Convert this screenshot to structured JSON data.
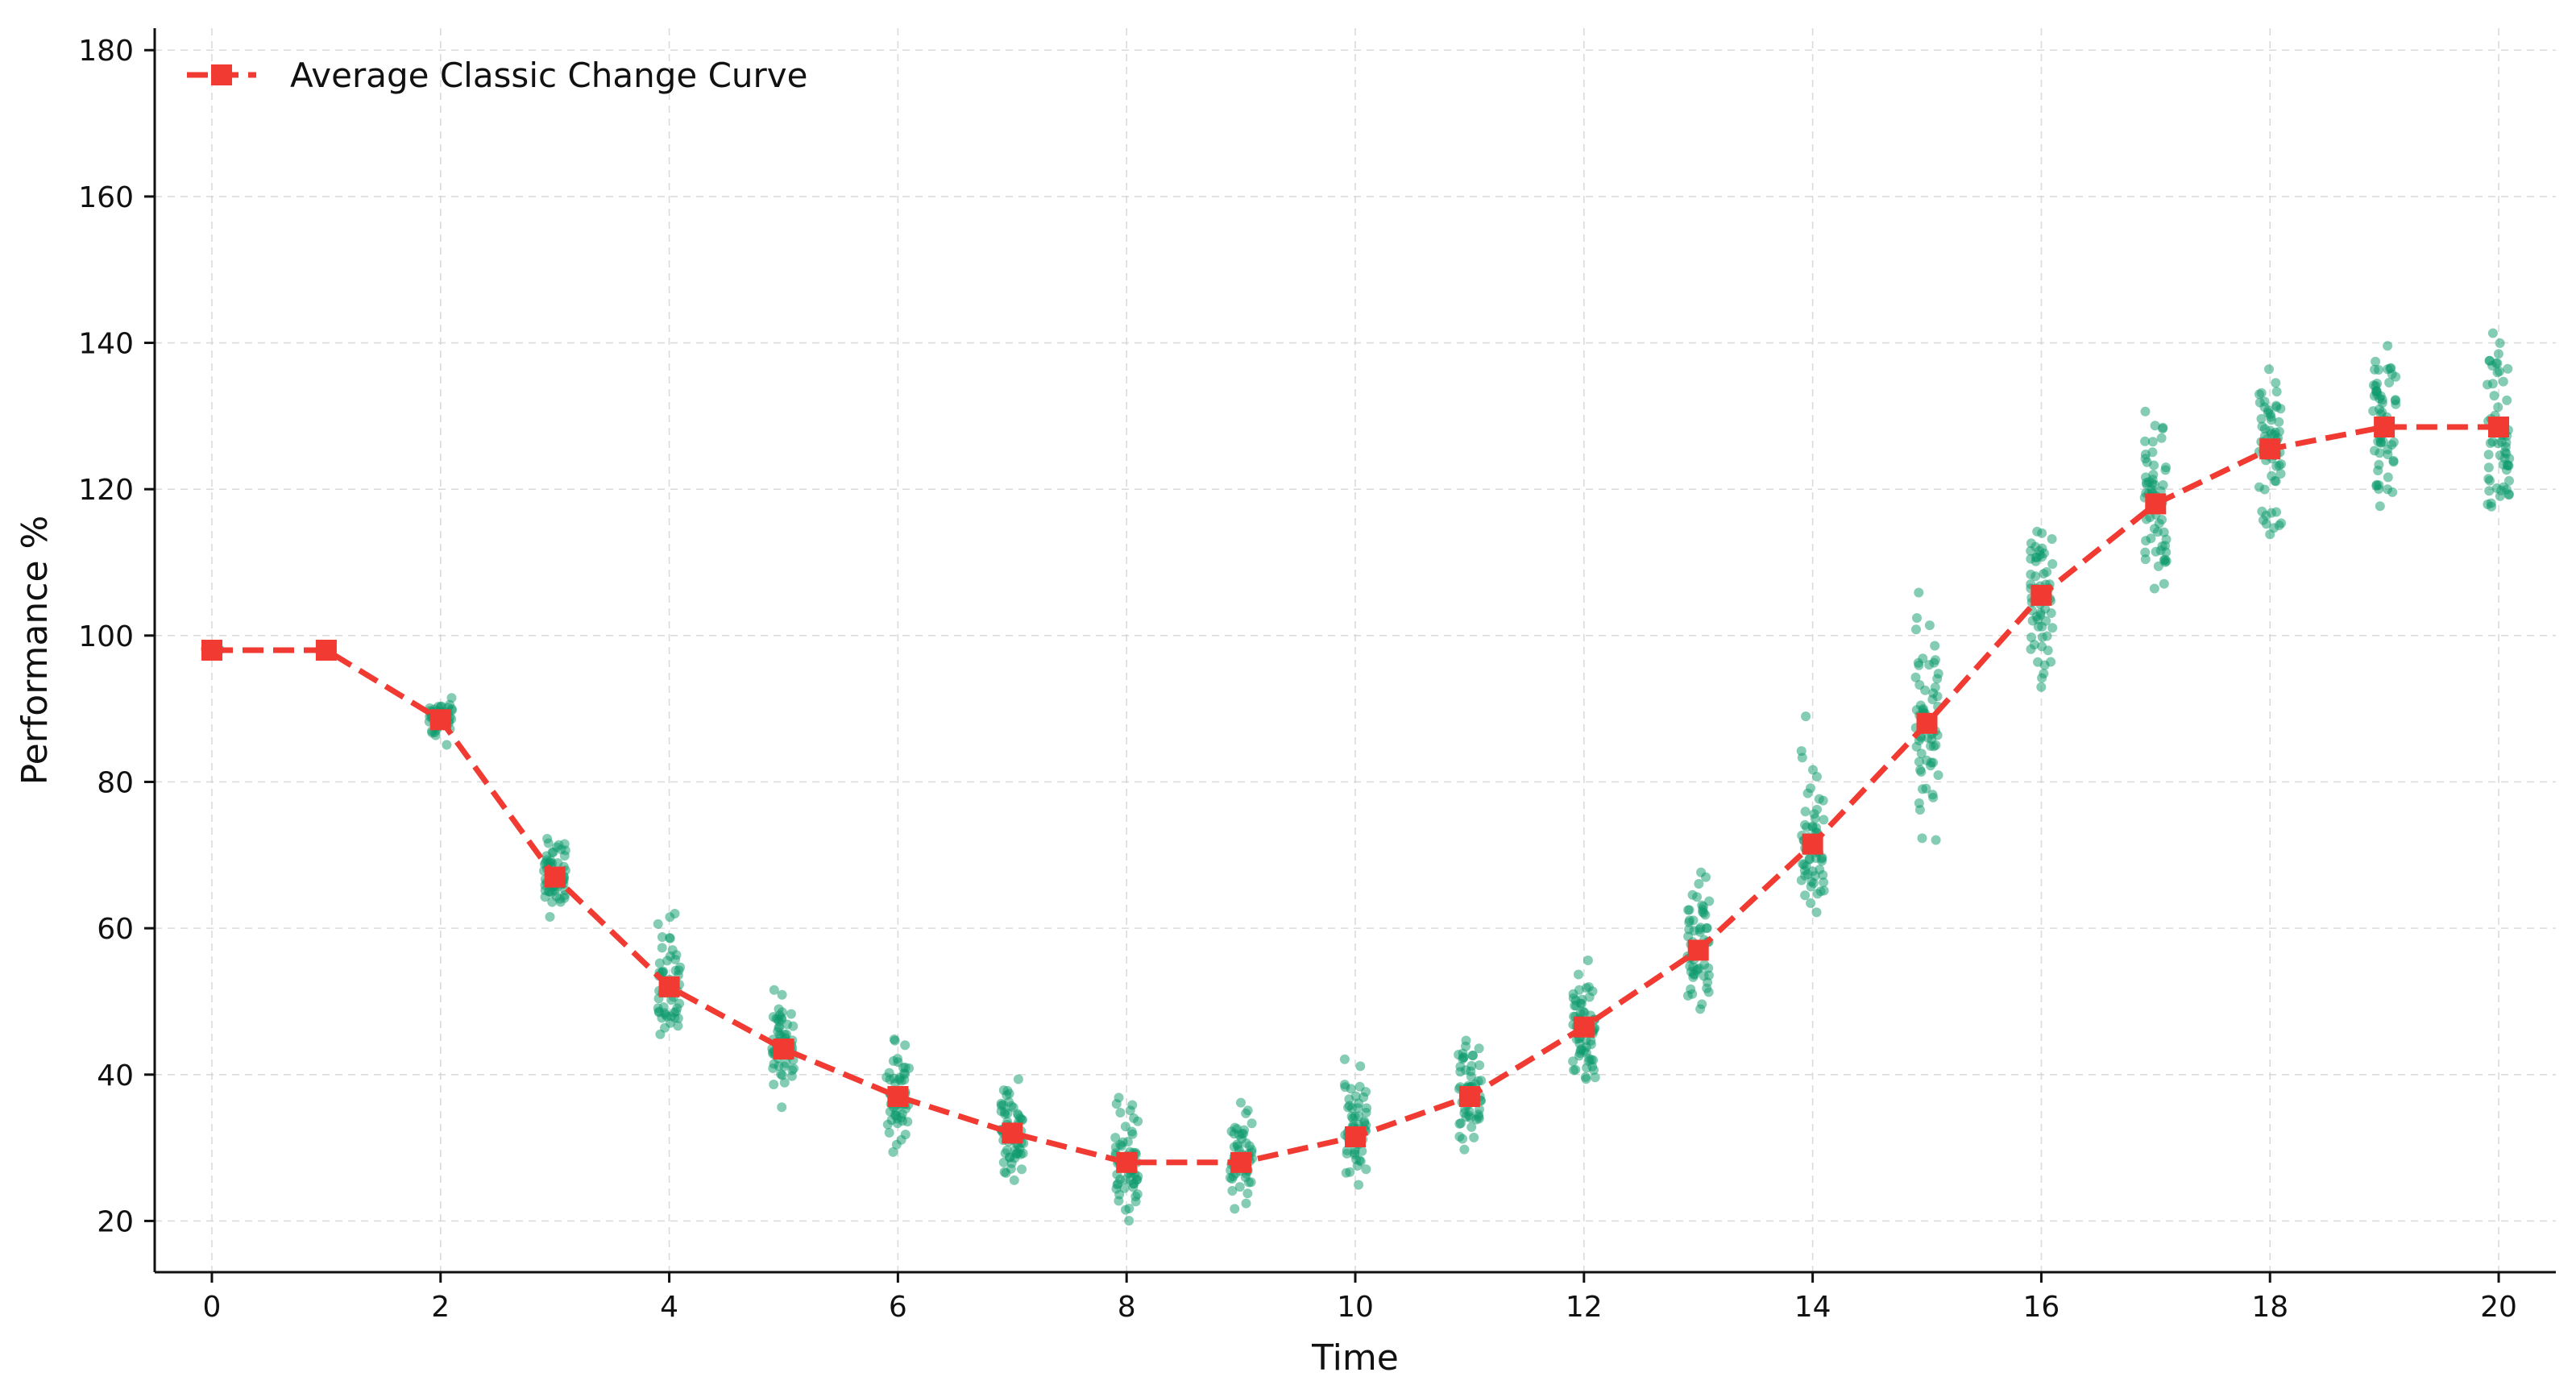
{
  "chart_data": {
    "type": "line",
    "title": "",
    "xlabel": "Time",
    "ylabel": "Performance %",
    "xlim": [
      -0.5,
      20.5
    ],
    "ylim": [
      13,
      183
    ],
    "x_ticks": [
      0,
      2,
      4,
      6,
      8,
      10,
      12,
      14,
      16,
      18,
      20
    ],
    "y_ticks": [
      20,
      40,
      60,
      80,
      100,
      120,
      140,
      160,
      180
    ],
    "grid": true,
    "legend_position": "top-left",
    "series": [
      {
        "name": "Average Classic Change Curve",
        "kind": "line",
        "color": "#f03a32",
        "line_style": "dashed",
        "marker": "square",
        "x": [
          0,
          1,
          2,
          3,
          4,
          5,
          6,
          7,
          8,
          9,
          10,
          11,
          12,
          13,
          14,
          15,
          16,
          17,
          18,
          19,
          20
        ],
        "y": [
          98,
          98,
          88.5,
          67,
          52,
          43.5,
          37,
          32,
          28,
          28,
          31.5,
          37,
          46.5,
          57,
          71.5,
          88,
          105.5,
          118,
          125.5,
          128.5,
          128.5
        ]
      },
      {
        "kind": "scatter",
        "color": "#0b9a6c",
        "jitter": 0.1,
        "groups": [
          {
            "x": 0,
            "center": 98,
            "spread_low": 97.5,
            "spread_high": 98.5
          },
          {
            "x": 2,
            "center": 88.5,
            "spread_low": 84,
            "spread_high": 93
          },
          {
            "x": 3,
            "center": 67,
            "spread_low": 59,
            "spread_high": 77
          },
          {
            "x": 4,
            "center": 52,
            "spread_low": 42,
            "spread_high": 66
          },
          {
            "x": 5,
            "center": 43.5,
            "spread_low": 34,
            "spread_high": 57
          },
          {
            "x": 6,
            "center": 37,
            "spread_low": 27,
            "spread_high": 50
          },
          {
            "x": 7,
            "center": 32,
            "spread_low": 20,
            "spread_high": 44
          },
          {
            "x": 8,
            "center": 28,
            "spread_low": 16,
            "spread_high": 41
          },
          {
            "x": 9,
            "center": 28,
            "spread_low": 16,
            "spread_high": 41
          },
          {
            "x": 10,
            "center": 31.5,
            "spread_low": 20,
            "spread_high": 45
          },
          {
            "x": 11,
            "center": 37,
            "spread_low": 25,
            "spread_high": 51
          },
          {
            "x": 12,
            "center": 46.5,
            "spread_low": 33,
            "spread_high": 60
          },
          {
            "x": 13,
            "center": 57,
            "spread_low": 43,
            "spread_high": 73
          },
          {
            "x": 14,
            "center": 71.5,
            "spread_low": 58,
            "spread_high": 92
          },
          {
            "x": 15,
            "center": 88,
            "spread_low": 66,
            "spread_high": 110
          },
          {
            "x": 16,
            "center": 105.5,
            "spread_low": 87,
            "spread_high": 125
          },
          {
            "x": 17,
            "center": 118,
            "spread_low": 98,
            "spread_high": 138
          },
          {
            "x": 18,
            "center": 125.5,
            "spread_low": 104,
            "spread_high": 147
          },
          {
            "x": 19,
            "center": 128.5,
            "spread_low": 108,
            "spread_high": 149
          },
          {
            "x": 20,
            "center": 128.5,
            "spread_low": 108,
            "spread_high": 149
          }
        ]
      }
    ]
  }
}
